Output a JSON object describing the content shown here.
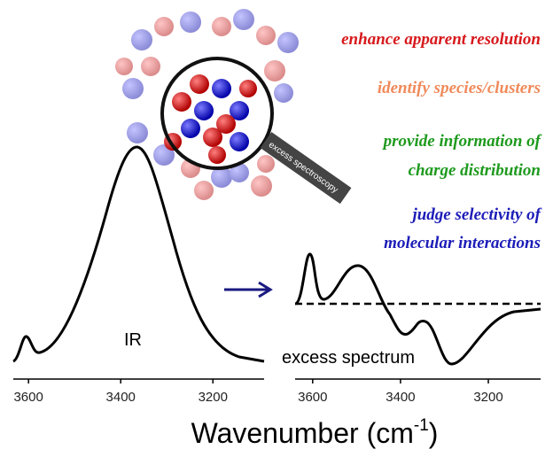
{
  "figure": {
    "annotations": [
      {
        "text": "enhance apparent  resolution",
        "color": "#d7191c"
      },
      {
        "text": "identify  species/clusters",
        "color": "#f08a5a"
      },
      {
        "text": "provide information of",
        "color": "#1e9a1e"
      },
      {
        "text": "charge distribution",
        "color": "#1e9a1e"
      },
      {
        "text": "judge selectivity of",
        "color": "#1c1cb8"
      },
      {
        "text": "molecular interactions",
        "color": "#1c1cb8"
      }
    ],
    "magnifier_label": "excess spectroscopy",
    "panels": [
      {
        "label": "IR",
        "xlim": [
          3633,
          3089
        ],
        "xticks": [
          3600,
          3400,
          3200
        ]
      },
      {
        "label": "excess spectrum",
        "xlim": [
          3640,
          3081
        ],
        "xticks": [
          3600,
          3400,
          3200
        ]
      }
    ],
    "xlabel": {
      "main": "Wavenumber (cm",
      "sup": "-1",
      "end": ")"
    }
  }
}
